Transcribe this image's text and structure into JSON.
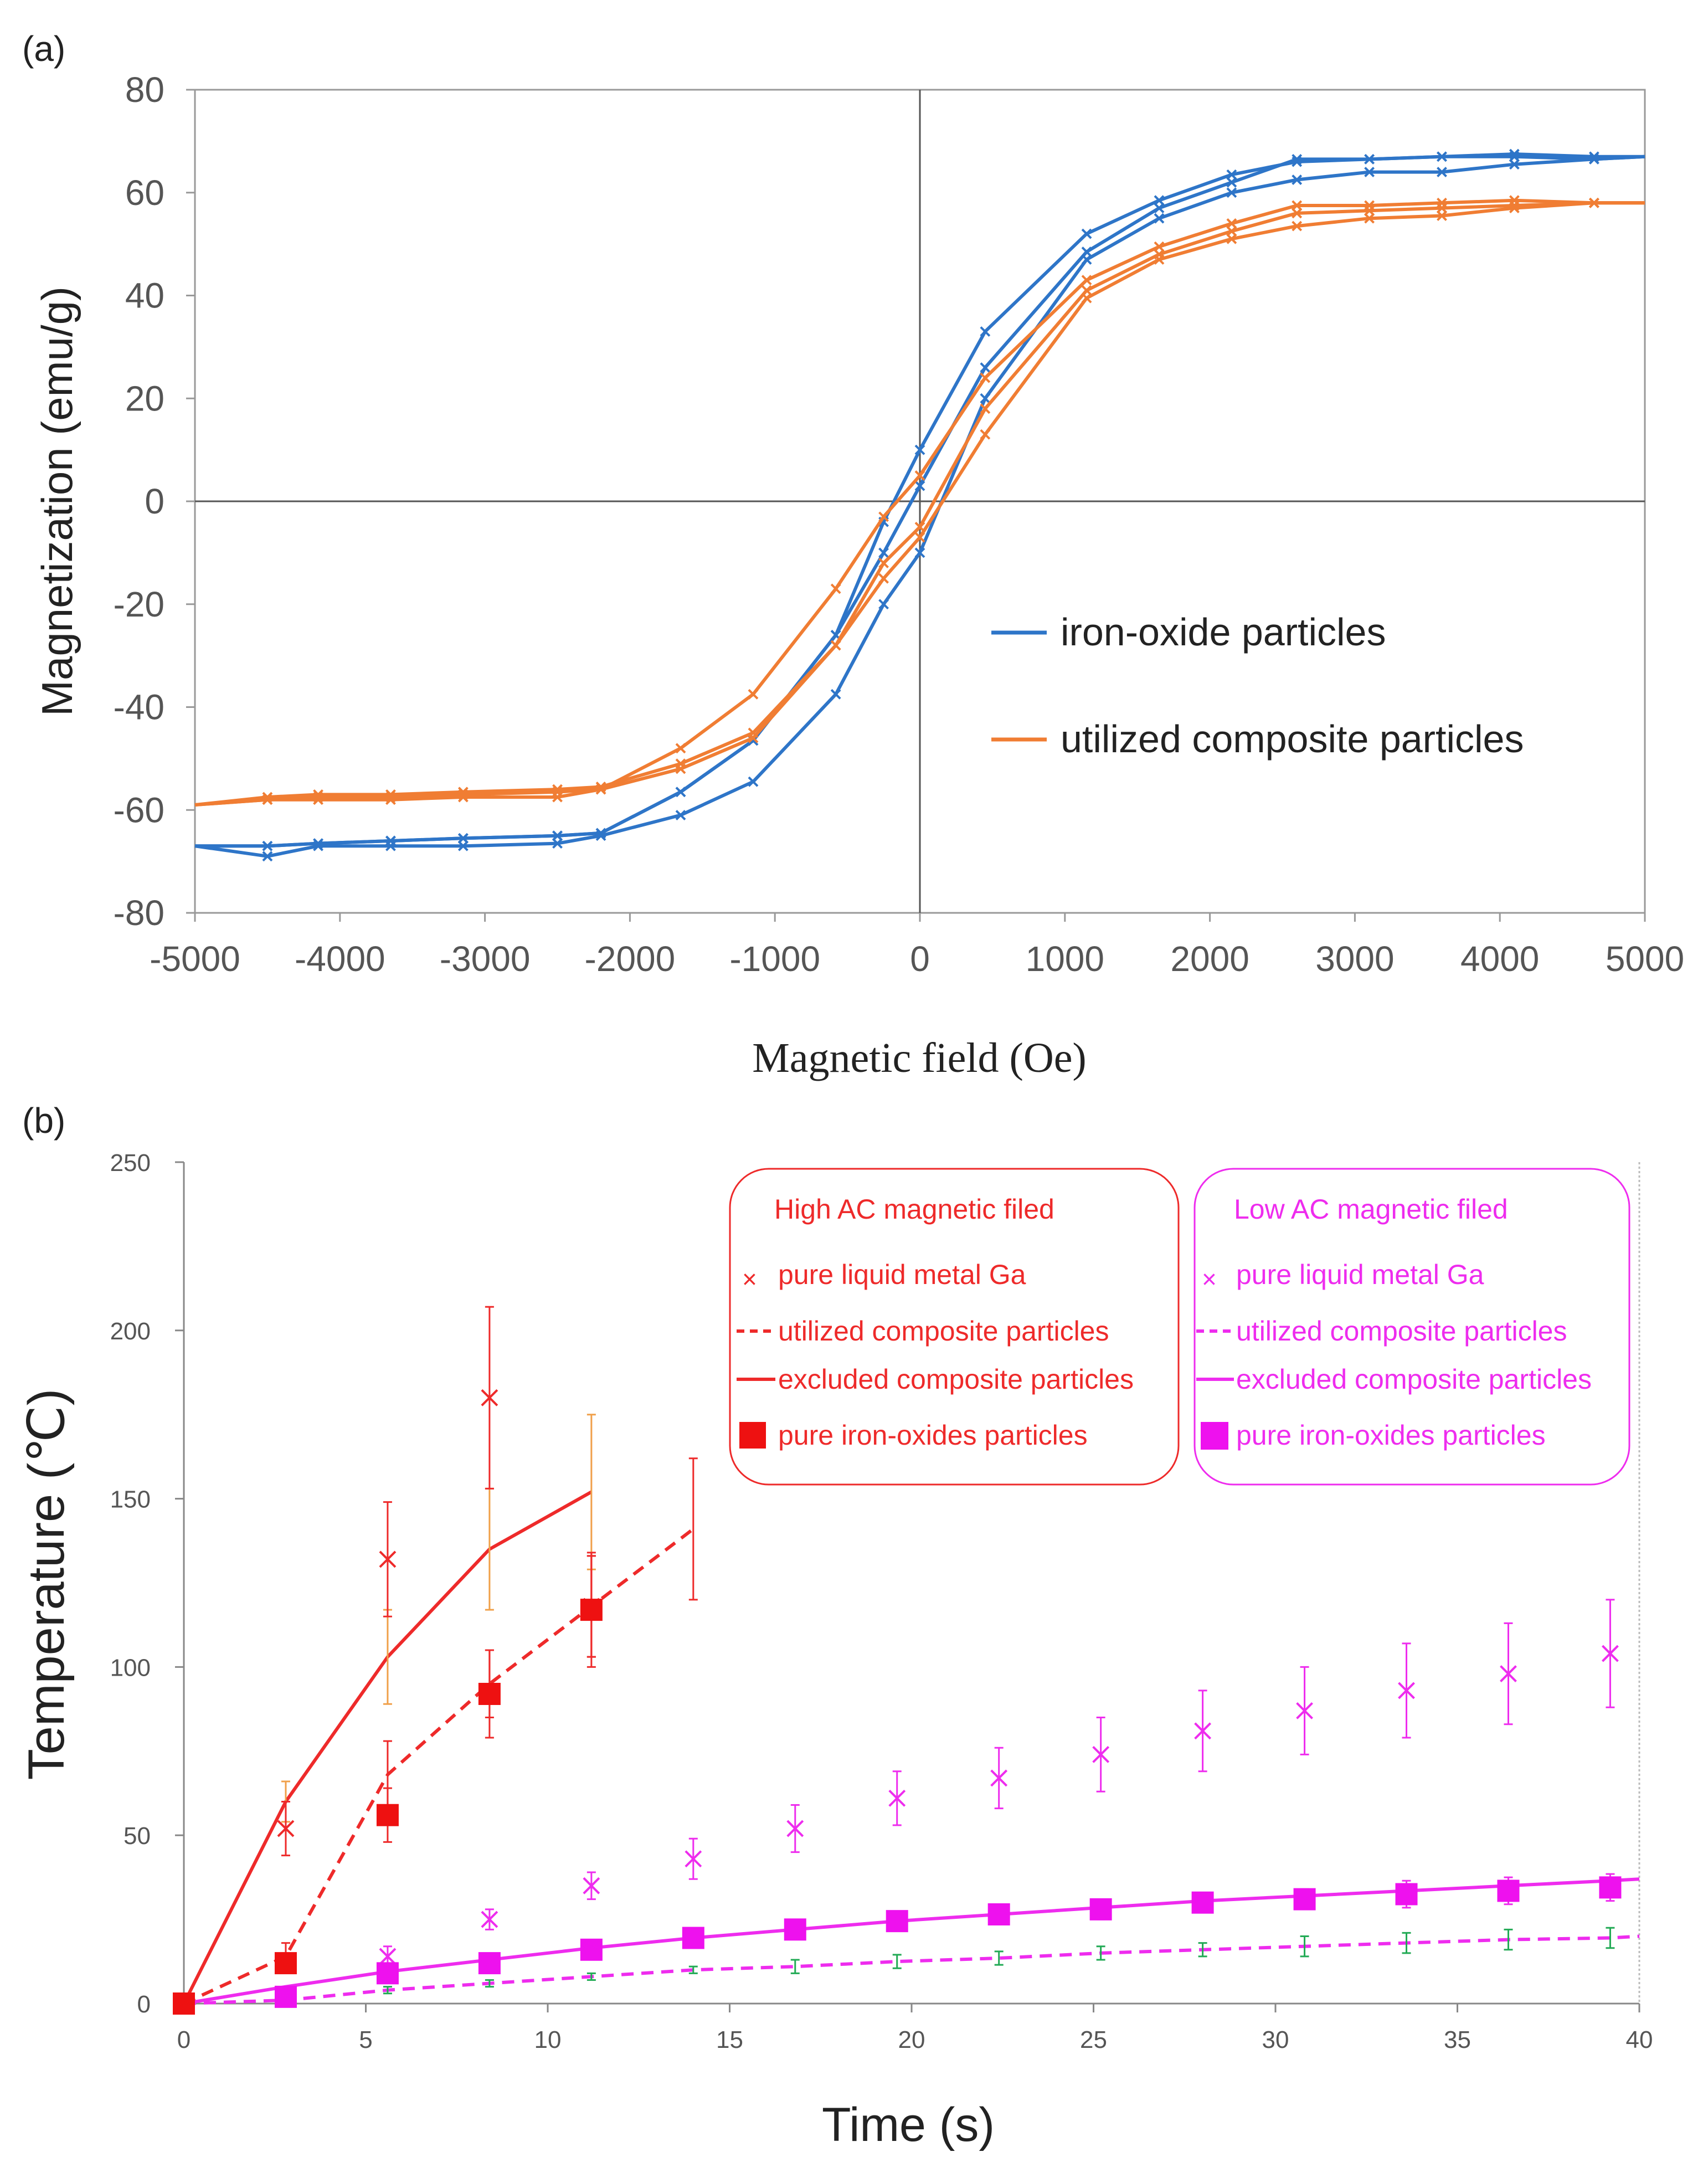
{
  "chart_data": [
    {
      "panel_label": "(a)",
      "type": "line",
      "xlabel": "Magnetic field (Oe)",
      "ylabel": "Magnetization (emu/g)",
      "xlim": [
        -5000,
        5000
      ],
      "ylim": [
        -80,
        80
      ],
      "xticks": [
        -5000,
        -4000,
        -3000,
        -2000,
        -1000,
        0,
        1000,
        2000,
        3000,
        4000,
        5000
      ],
      "yticks": [
        -80,
        -60,
        -40,
        -20,
        0,
        20,
        40,
        60,
        80
      ],
      "series": [
        {
          "name": "iron-oxide particles",
          "color": "#2e75c8",
          "loops": [
            {
              "x": [
                -5000,
                -4500,
                -4150,
                -3650,
                -3150,
                -2500,
                -2200,
                -1650,
                -1150,
                -580,
                -250,
                0,
                450,
                1150,
                1650,
                2150,
                2600,
                3100,
                3600,
                4100,
                4650,
                5000
              ],
              "y": [
                -67,
                -67,
                -66.5,
                -66,
                -65.5,
                -65,
                -64.5,
                -56.5,
                -46.5,
                -26,
                -10,
                3,
                26,
                48.5,
                57,
                62,
                66.5,
                66.5,
                67,
                67,
                66.5,
                67
              ]
            },
            {
              "x": [
                -5000,
                -4500,
                -4150,
                -3650,
                -3150,
                -2500,
                -2200,
                -1650,
                -1150,
                -580,
                -250,
                0,
                450,
                1150,
                1650,
                2150,
                2600,
                3100,
                3600,
                4100,
                4650,
                5000
              ],
              "y": [
                -67,
                -69,
                -67,
                -67,
                -67,
                -66.5,
                -65,
                -61,
                -54.5,
                -37.5,
                -20,
                -10,
                20,
                47,
                55,
                60,
                62.5,
                64,
                64,
                65.5,
                66.5,
                67
              ]
            },
            {
              "x": [
                -5000,
                -4500,
                -4150,
                -3650,
                -3150,
                -2500,
                -2200,
                -1650,
                -1150,
                -580,
                -250,
                0,
                450,
                1150,
                1650,
                2150,
                2600,
                3100,
                3600,
                4100,
                4650,
                5000
              ],
              "y": [
                -67,
                -67,
                -66.5,
                -66,
                -65.5,
                -65,
                -64.5,
                -56.5,
                -46.5,
                -26,
                -4,
                10,
                33,
                52,
                58.5,
                63.5,
                66,
                66.5,
                67,
                67.5,
                67,
                67
              ]
            }
          ]
        },
        {
          "name": "utilized composite particles",
          "color": "#f07d33",
          "loops": [
            {
              "x": [
                -5000,
                -4500,
                -4150,
                -3650,
                -3150,
                -2500,
                -2200,
                -1650,
                -1150,
                -580,
                -250,
                0,
                450,
                1150,
                1650,
                2150,
                2600,
                3100,
                3600,
                4100,
                4650,
                5000
              ],
              "y": [
                -59,
                -58,
                -57.5,
                -57.5,
                -57,
                -56.5,
                -56,
                -48,
                -37.5,
                -17,
                -3,
                5,
                24,
                43,
                49.5,
                54,
                57.5,
                57.5,
                58,
                58.5,
                58,
                58
              ]
            },
            {
              "x": [
                -5000,
                -4500,
                -4150,
                -3650,
                -3150,
                -2500,
                -2200,
                -1650,
                -1150,
                -580,
                -250,
                0,
                450,
                1150,
                1650,
                2150,
                2600,
                3100,
                3600,
                4100,
                4650,
                5000
              ],
              "y": [
                -59,
                -58,
                -58,
                -58,
                -57.5,
                -57.5,
                -56,
                -52,
                -46,
                -28,
                -15,
                -7,
                13,
                39.5,
                47,
                51,
                53.5,
                55,
                55.5,
                57,
                58,
                58
              ]
            },
            {
              "x": [
                -5000,
                -4500,
                -4150,
                -3650,
                -3150,
                -2500,
                -2200,
                -1650,
                -1150,
                -580,
                -250,
                0,
                450,
                1150,
                1650,
                2150,
                2600,
                3100,
                3600,
                4100,
                4650,
                5000
              ],
              "y": [
                -59,
                -57.5,
                -57,
                -57,
                -56.5,
                -56,
                -55.5,
                -51,
                -45,
                -28,
                -12,
                -5,
                18,
                41,
                48,
                52.5,
                56,
                56.5,
                57,
                57.5,
                58,
                58
              ]
            }
          ]
        }
      ],
      "legend": "center-right"
    },
    {
      "panel_label": "(b)",
      "type": "line",
      "xlabel": "Time (s)",
      "ylabel": "Temperature (℃)",
      "xlim": [
        0,
        40
      ],
      "ylim": [
        0,
        250
      ],
      "xticks": [
        0,
        5,
        10,
        15,
        20,
        25,
        30,
        35,
        40
      ],
      "yticks": [
        0,
        50,
        100,
        150,
        200,
        250
      ],
      "legend_groups": [
        {
          "title": "High AC magnetic filed",
          "color": "#ee2a2a",
          "entries": [
            "pure liquid metal Ga",
            "utilized composite particles",
            "excluded composite particles",
            "pure iron-oxides particles"
          ]
        },
        {
          "title": "Low AC magnetic filed",
          "color": "#ee2cee",
          "entries": [
            "pure liquid metal Ga",
            "utilized composite particles",
            "excluded composite particles",
            "pure iron-oxides particles"
          ]
        }
      ],
      "series": [
        {
          "name": "High AC - pure liquid metal Ga",
          "style": "x-markers",
          "color": "#ee2a2a",
          "x": [
            2.8,
            5.6,
            8.4,
            11.2
          ],
          "y": [
            52,
            132,
            180,
            118
          ],
          "err": [
            8,
            17,
            27,
            15
          ]
        },
        {
          "name": "High AC - utilized composite particles",
          "style": "dashed",
          "color": "#ee2a2a",
          "x": [
            0,
            2.8,
            5.6,
            8.4,
            11.2,
            14
          ],
          "y": [
            0,
            14,
            68,
            95,
            118,
            141
          ],
          "err": [
            0,
            4,
            10,
            10,
            15,
            21
          ]
        },
        {
          "name": "High AC - excluded composite particles",
          "style": "solid",
          "color": "#ee2a2a",
          "x": [
            0,
            2.8,
            5.6,
            8.4,
            11.2
          ],
          "y": [
            0,
            60,
            103,
            135,
            152
          ],
          "err": [
            0,
            6,
            14,
            18,
            23
          ]
        },
        {
          "name": "High AC - pure iron-oxides particles",
          "style": "square-markers",
          "color": "#ee2a2a",
          "x": [
            0,
            2.8,
            5.6,
            8.4,
            11.2
          ],
          "y": [
            0,
            12,
            56,
            92,
            117
          ],
          "err": [
            0,
            3,
            8,
            13,
            17
          ]
        },
        {
          "name": "Low AC - pure liquid metal Ga",
          "style": "x-markers",
          "color": "#ee2cee",
          "x": [
            2.8,
            5.6,
            8.4,
            11.2,
            14,
            16.8,
            19.6,
            22.4,
            25.2,
            28,
            30.8,
            33.6,
            36.4,
            39.2
          ],
          "y": [
            2,
            14,
            25,
            35,
            43,
            52,
            61,
            67,
            74,
            81,
            87,
            93,
            98,
            104
          ],
          "err": [
            2,
            3,
            3,
            4,
            6,
            7,
            8,
            9,
            11,
            12,
            13,
            14,
            15,
            16
          ]
        },
        {
          "name": "Low AC - utilized composite particles",
          "style": "dashed",
          "color": "#ee2cee",
          "x": [
            0,
            2.8,
            5.6,
            8.4,
            11.2,
            14,
            16.8,
            19.6,
            22.4,
            25.2,
            28,
            30.8,
            33.6,
            36.4,
            39.2,
            40
          ],
          "y": [
            0,
            1,
            4,
            6,
            8,
            10,
            11,
            12.5,
            13.5,
            15,
            16,
            17,
            18,
            19,
            19.5,
            20
          ],
          "err": [
            0,
            1,
            1,
            1,
            1,
            1,
            2,
            2,
            2,
            2,
            2,
            3,
            3,
            3,
            3,
            0
          ]
        },
        {
          "name": "Low AC - excluded composite particles",
          "style": "solid",
          "color": "#ee2cee",
          "x": [
            0,
            2.8,
            5.6,
            8.4,
            11.2,
            14,
            16.8,
            19.6,
            22.4,
            25.2,
            28,
            30.8,
            33.6,
            36.4,
            39.2,
            40
          ],
          "y": [
            0,
            5,
            9.5,
            13,
            16.5,
            19.5,
            22,
            24.5,
            26.5,
            28.5,
            30.5,
            32,
            33.5,
            35,
            36.5,
            37
          ],
          "err": []
        },
        {
          "name": "Low AC - pure iron-oxides particles",
          "style": "square-markers",
          "color": "#ee2cee",
          "x": [
            2.8,
            5.6,
            8.4,
            11.2,
            14,
            16.8,
            19.6,
            22.4,
            25.2,
            28,
            30.8,
            33.6,
            36.4,
            39.2
          ],
          "y": [
            2,
            9,
            12,
            16,
            19.5,
            22,
            24.5,
            26.5,
            28,
            30,
            31,
            32.5,
            33.5,
            34.5
          ],
          "err": [
            1,
            2,
            2,
            2,
            2,
            2,
            2,
            2,
            3,
            3,
            3,
            4,
            4,
            4
          ]
        }
      ]
    }
  ]
}
